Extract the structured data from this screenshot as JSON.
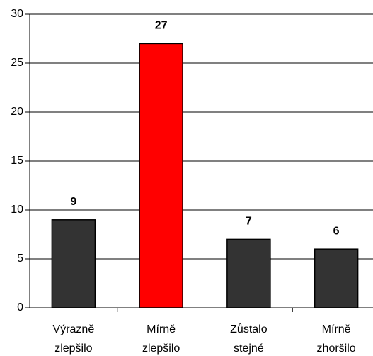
{
  "chart_data": {
    "type": "bar",
    "categories": [
      "Výrazně zlepšilo",
      "Mírně zlepšilo",
      "Zůstalo stejné",
      "Mírně zhoršilo"
    ],
    "values": [
      9,
      27,
      7,
      6
    ],
    "colors": [
      "#333333",
      "#ff0000",
      "#333333",
      "#333333"
    ],
    "ylim": [
      0,
      30
    ],
    "yticks": [
      0,
      5,
      10,
      15,
      20,
      25,
      30
    ],
    "grid": true
  }
}
